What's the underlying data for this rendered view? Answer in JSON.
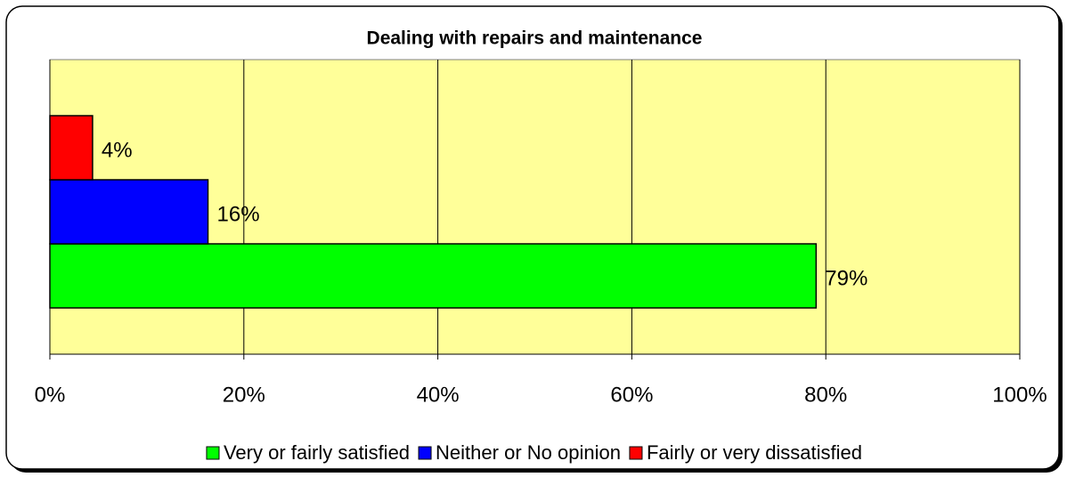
{
  "chart_data": {
    "type": "bar",
    "orientation": "horizontal",
    "title": "Dealing with repairs and maintenance",
    "series": [
      {
        "name": "Very or fairly satisfied",
        "color": "#00ff00",
        "values": [
          79.0
        ],
        "value_labels": [
          "79%"
        ]
      },
      {
        "name": "Neither or No opinion",
        "color": "#0000ff",
        "values": [
          16.3
        ],
        "value_labels": [
          "16%"
        ]
      },
      {
        "name": "Fairly or very dissatisfied",
        "color": "#ff0000",
        "values": [
          4.4
        ],
        "value_labels": [
          "4%"
        ]
      }
    ],
    "xlim": [
      0,
      100
    ],
    "xticks": [
      {
        "value": 0,
        "label": "0%"
      },
      {
        "value": 20,
        "label": "20%"
      },
      {
        "value": 40,
        "label": "40%"
      },
      {
        "value": 60,
        "label": "60%"
      },
      {
        "value": 80,
        "label": "80%"
      },
      {
        "value": 100,
        "label": "100%"
      }
    ],
    "grid": true,
    "plot_background": "#ffff99",
    "legend": "bottom"
  }
}
